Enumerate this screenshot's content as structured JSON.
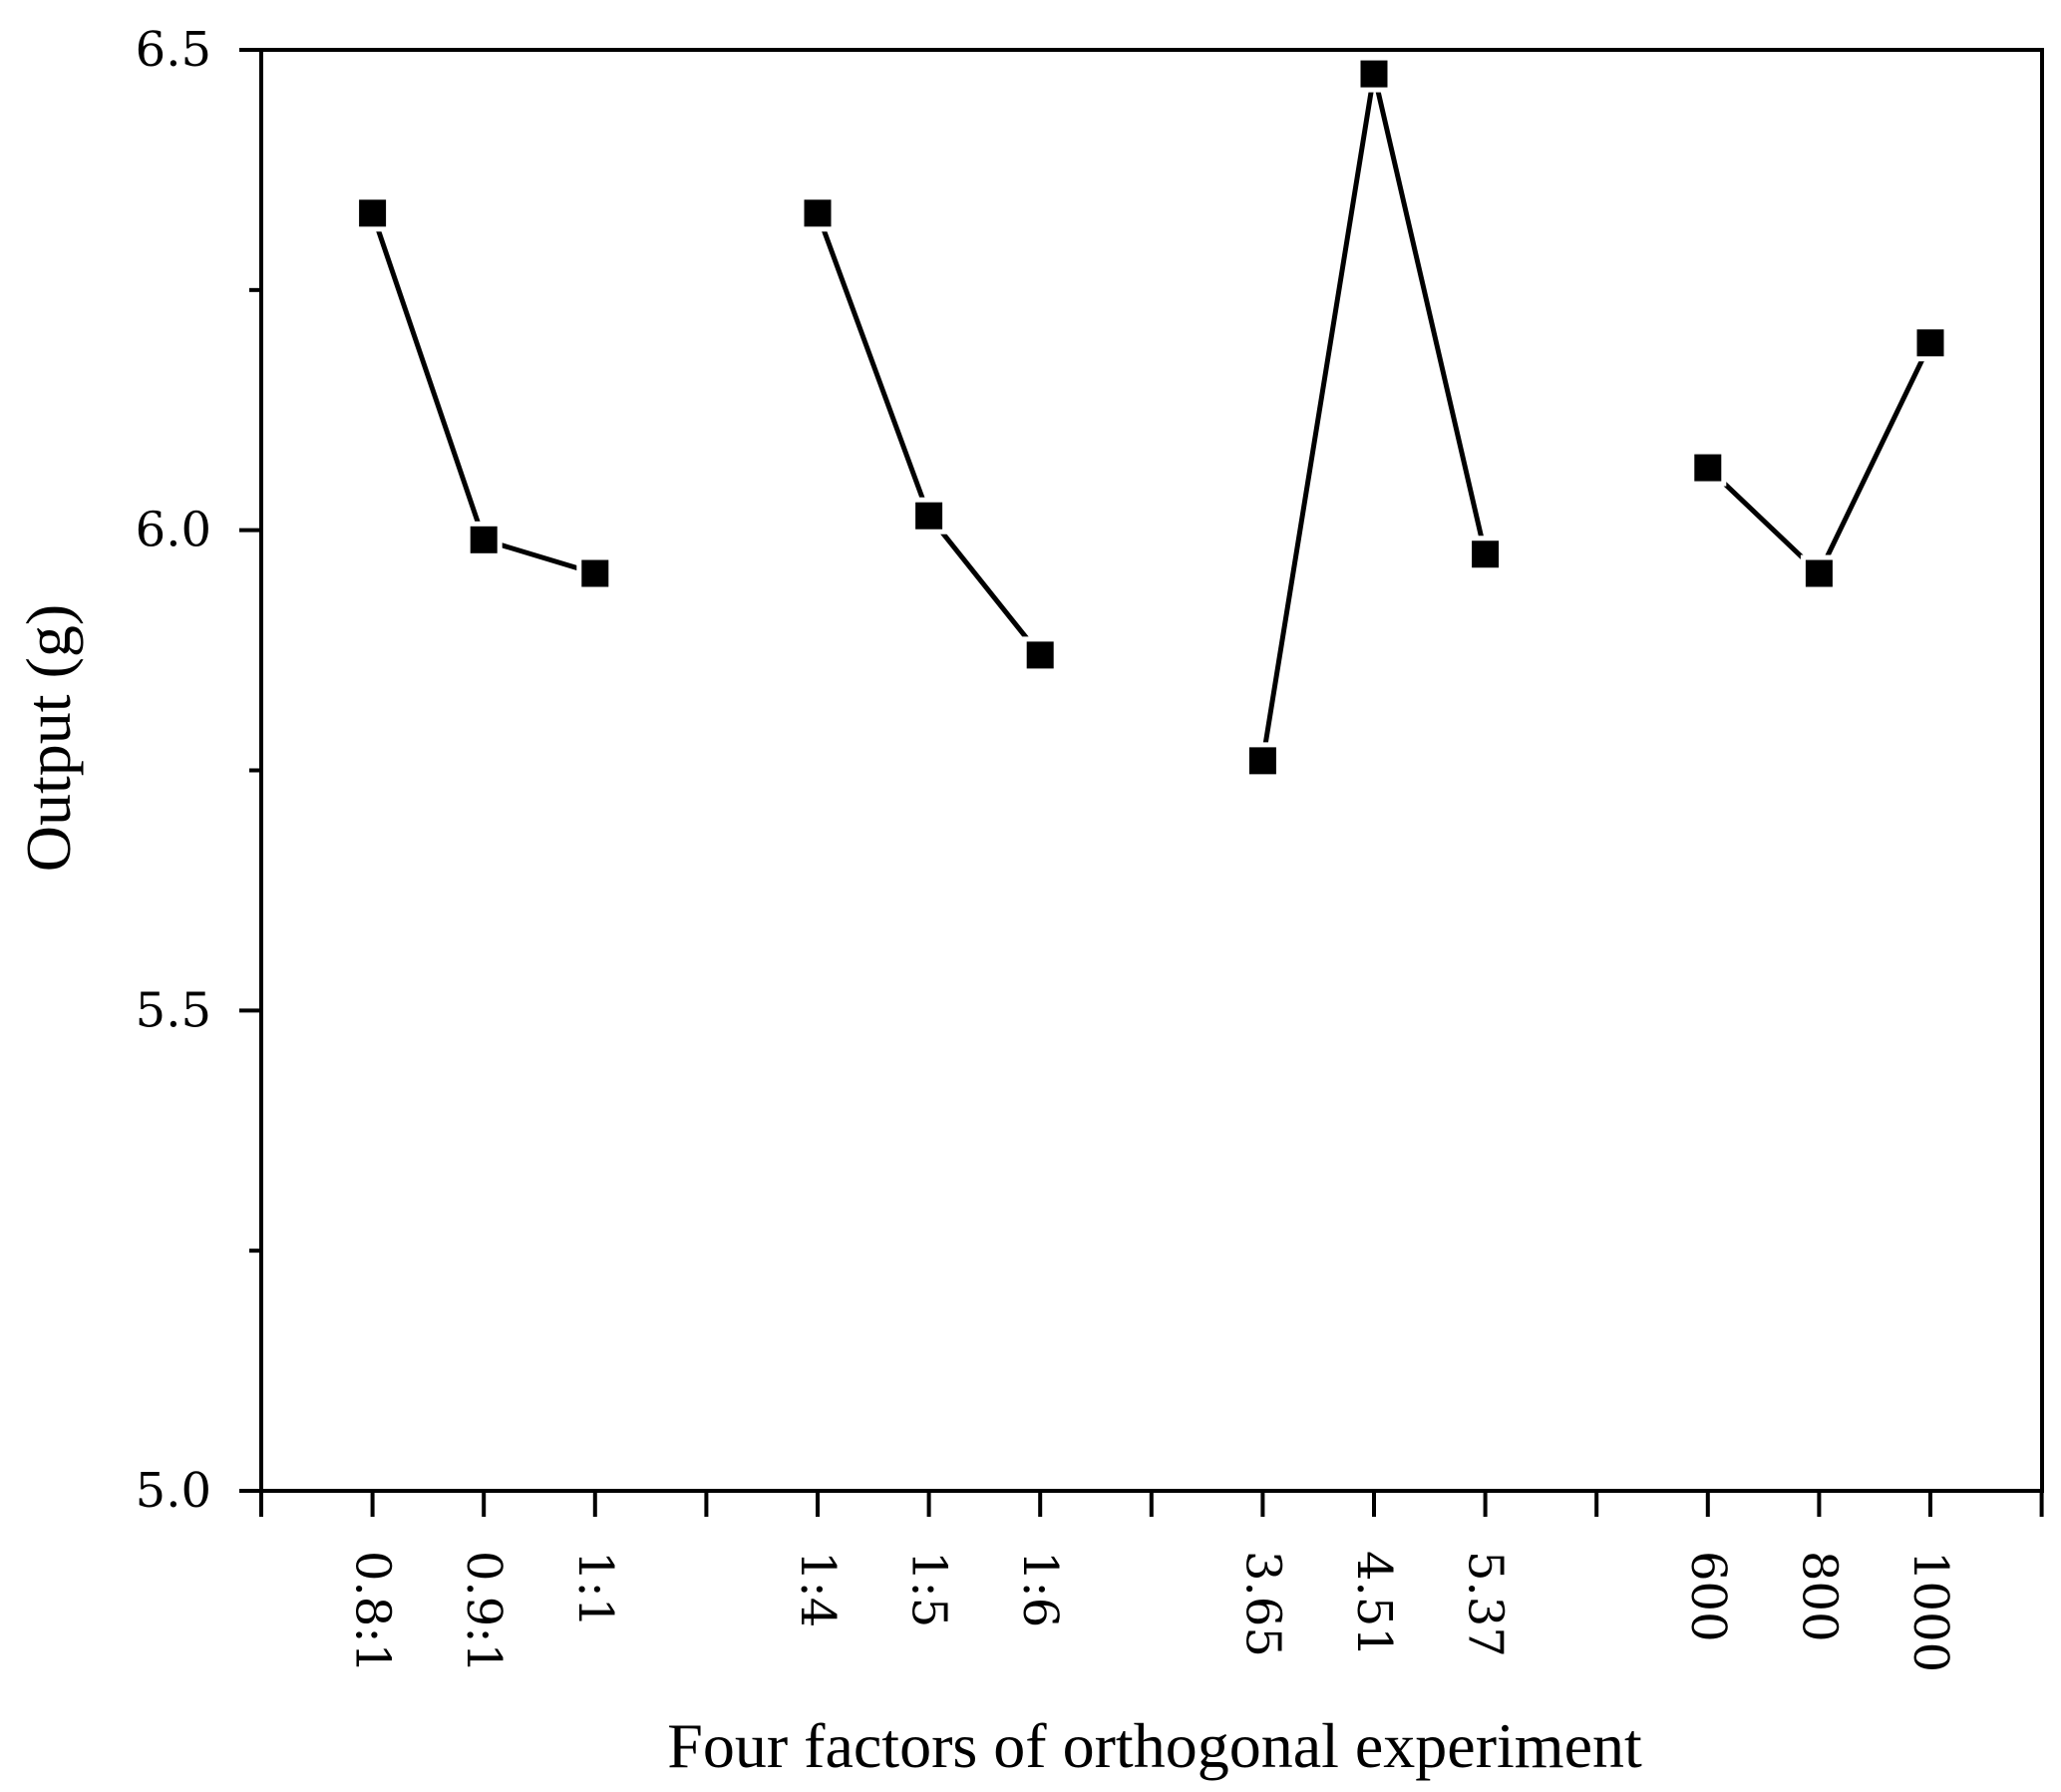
{
  "chart_data": {
    "type": "line",
    "title": "",
    "xlabel": "Four factors of orthogonal experiment",
    "ylabel": "Output (g)",
    "ylim": [
      5.0,
      6.5
    ],
    "yticks": [
      {
        "value": 5.0,
        "label": "5.0"
      },
      {
        "value": 5.5,
        "label": "5.5"
      },
      {
        "value": 6.0,
        "label": "6.0"
      },
      {
        "value": 6.5,
        "label": "6.5"
      }
    ],
    "yminor": [
      5.25,
      5.75,
      6.25
    ],
    "grid": false,
    "marker": "square",
    "groups": [
      {
        "categories": [
          "0.8:1",
          "0.9:1",
          "1:1"
        ],
        "values": [
          6.33,
          5.99,
          5.955
        ]
      },
      {
        "categories": [
          "1:4",
          "1:5",
          "1:6"
        ],
        "values": [
          6.33,
          6.015,
          5.87
        ]
      },
      {
        "categories": [
          "3.65",
          "4.51",
          "5.37"
        ],
        "values": [
          5.76,
          6.475,
          5.975
        ]
      },
      {
        "categories": [
          "600",
          "800",
          "1000"
        ],
        "values": [
          6.065,
          5.955,
          6.195
        ]
      }
    ]
  }
}
